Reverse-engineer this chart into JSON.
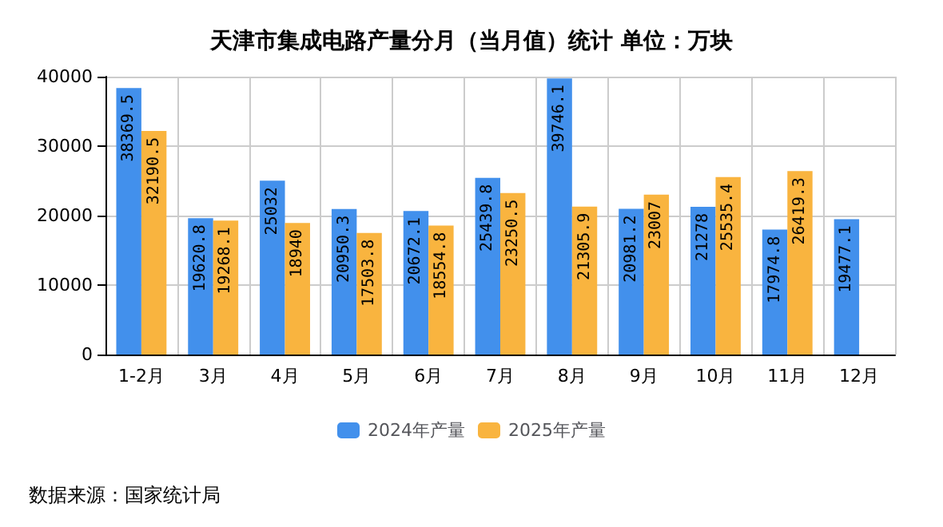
{
  "chart_data": {
    "type": "bar",
    "title": "天津市集成电路产量分月（当月值）统计 单位：万块",
    "categories": [
      "1-2月",
      "3月",
      "4月",
      "5月",
      "6月",
      "7月",
      "8月",
      "9月",
      "10月",
      "11月",
      "12月"
    ],
    "series": [
      {
        "name": "2024年产量",
        "color": "#4290ec",
        "values": [
          38369.5,
          19620.8,
          25032,
          20950.3,
          20672.1,
          25439.8,
          39746.1,
          20981.2,
          21278,
          17974.8,
          19477.1
        ]
      },
      {
        "name": "2025年产量",
        "color": "#f9b43f",
        "values": [
          32190.5,
          19268.1,
          18940,
          17503.8,
          18554.8,
          23250.5,
          21305.9,
          23007,
          25535.4,
          26419.3,
          null
        ]
      }
    ],
    "ylim": [
      0,
      40000
    ],
    "yticks": [
      0,
      10000,
      20000,
      30000,
      40000
    ],
    "grid": true,
    "legend": "bottom",
    "data_labels": true,
    "annotations": [
      "数据来源：国家统计局"
    ]
  }
}
